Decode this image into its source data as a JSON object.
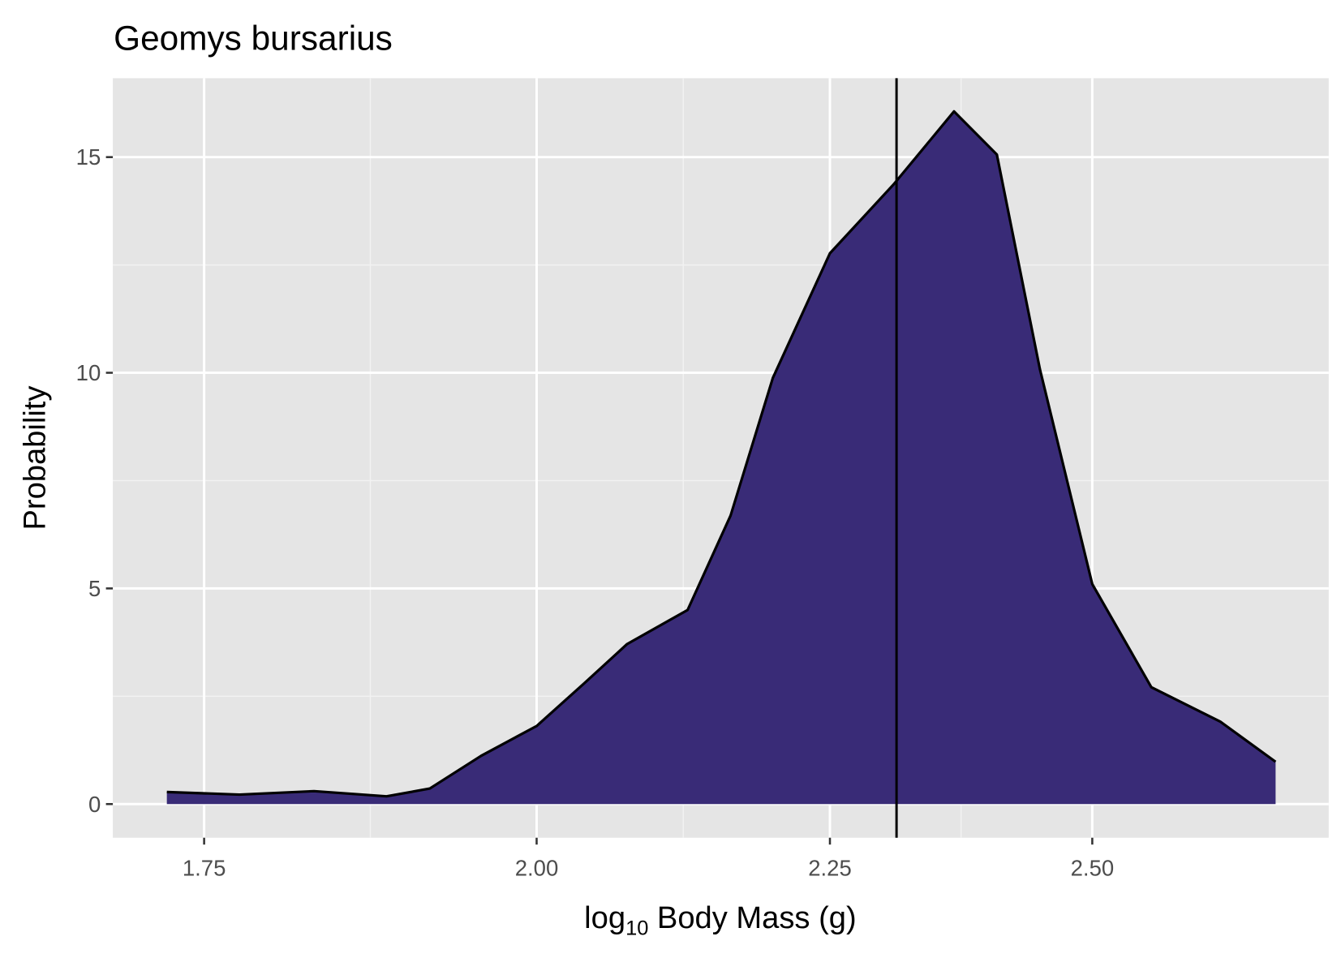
{
  "chart_data": {
    "type": "density",
    "title": "Geomys bursarius",
    "x_label": {
      "base": "log",
      "subscript": "10",
      "rest": " Body Mass (g)"
    },
    "y_label": "Probability",
    "x": [
      1.724,
      1.775,
      1.829,
      1.883,
      1.916,
      1.956,
      2.0,
      2.039,
      2.074,
      2.125,
      2.162,
      2.199,
      2.25,
      2.308,
      2.365,
      2.406,
      2.448,
      2.5,
      2.56,
      2.632,
      2.691
    ],
    "values": [
      0.28,
      0.22,
      0.3,
      0.18,
      0.36,
      1.12,
      1.81,
      2.81,
      3.71,
      4.5,
      6.69,
      9.88,
      12.77,
      14.36,
      16.06,
      15.06,
      10.08,
      5.1,
      2.71,
      1.91,
      0.98
    ],
    "color": "#392b77",
    "vline": 2.311,
    "xlim": [
      1.687,
      2.749
    ],
    "ylim": [
      -0.78,
      16.83
    ],
    "xlog": true,
    "xticks": [
      1.75,
      {
        "value": 2,
        "label": "2.00"
      },
      2.25,
      {
        "value": 2.5,
        "label": "2.50"
      }
    ],
    "yticks": [
      0,
      5,
      10,
      15
    ],
    "grid": true
  }
}
